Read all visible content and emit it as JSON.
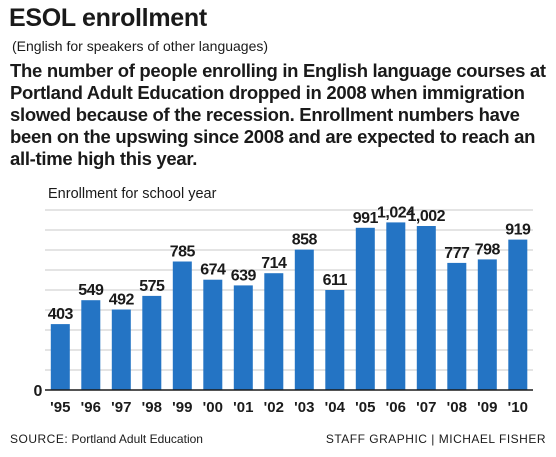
{
  "header": {
    "title": "ESOL enrollment",
    "subtitle": "(English for speakers of other languages)",
    "chatter": "The number of people enrolling in English language courses at Portland Adult Education dropped in 2008 when immigration slowed because of the recession. Enrollment numbers have been on the upswing since 2008 and are expected to reach an all-time high this year."
  },
  "footer": {
    "source_label": "SOURCE:",
    "source_text": "Portland Adult Education",
    "credit": "STAFF GRAPHIC | MICHAEL FISHER"
  },
  "chart_data": {
    "type": "bar",
    "ylabel": "Enrollment for school year",
    "categories": [
      "'95",
      "'96",
      "'97",
      "'98",
      "'99",
      "'00",
      "'01",
      "'02",
      "'03",
      "'04",
      "'05",
      "'06",
      "'07",
      "'08",
      "'09",
      "'10"
    ],
    "values": [
      403,
      549,
      492,
      575,
      785,
      674,
      639,
      714,
      858,
      611,
      991,
      1024,
      1002,
      777,
      798,
      919
    ],
    "value_labels": [
      "403",
      "549",
      "492",
      "575",
      "785",
      "674",
      "639",
      "714",
      "858",
      "611",
      "991",
      "1,024",
      "1,002",
      "777",
      "798",
      "919"
    ],
    "y_tick_labels": [
      "0"
    ],
    "ylim": [
      0,
      1100
    ],
    "grid": true,
    "bar_color": "#2474c4",
    "grid_color": "#c8c8c8"
  }
}
